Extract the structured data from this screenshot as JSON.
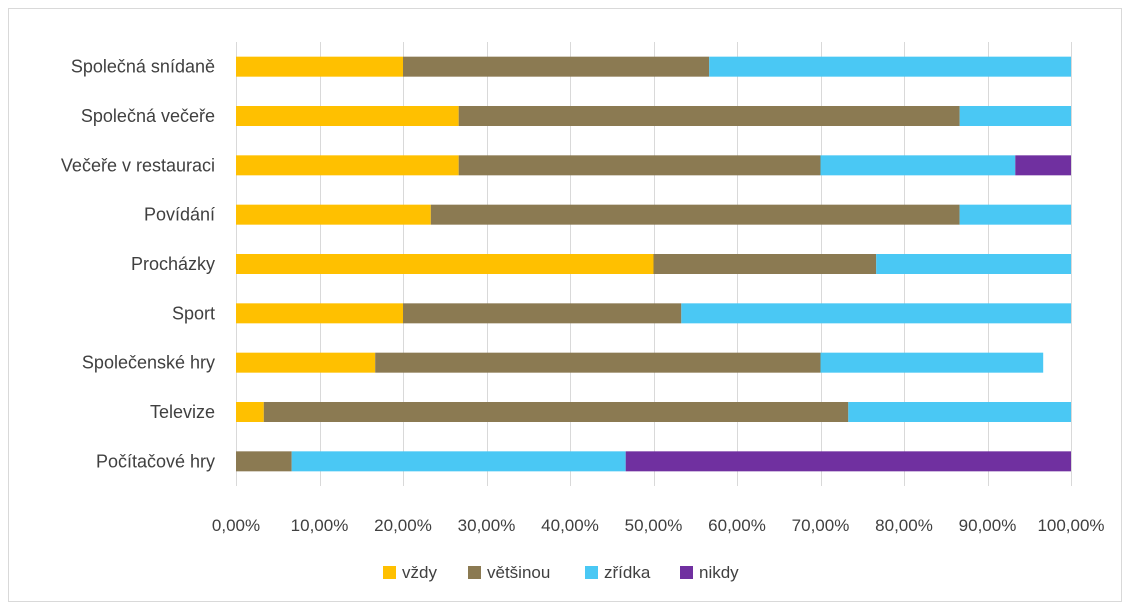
{
  "chart_data": {
    "type": "bar",
    "orientation": "horizontal",
    "stacked": true,
    "categories": [
      "Společná snídaně",
      "Společná večeře",
      "Večeře v restauraci",
      "Povídání",
      "Procházky",
      "Sport",
      "Společenské hry",
      "Televize",
      "Počítačové hry"
    ],
    "series": [
      {
        "name": "vždy",
        "color": "#ffc000",
        "values": [
          20.0,
          26.67,
          26.67,
          23.33,
          50.0,
          20.0,
          16.67,
          3.33,
          0.0
        ]
      },
      {
        "name": "většinou",
        "color": "#8b7a52",
        "values": [
          36.67,
          60.0,
          43.33,
          63.33,
          26.67,
          33.33,
          53.33,
          70.0,
          6.67
        ]
      },
      {
        "name": "zřídka",
        "color": "#4ac8f4",
        "values": [
          43.33,
          13.33,
          23.33,
          13.34,
          23.33,
          46.67,
          26.67,
          26.67,
          40.0
        ]
      },
      {
        "name": "nikdy",
        "color": "#7030a0",
        "values": [
          0.0,
          0.0,
          6.67,
          0.0,
          0.0,
          0.0,
          0.0,
          0.0,
          53.33
        ]
      }
    ],
    "xlim": [
      0,
      100
    ],
    "xticks": [
      "0,00%",
      "10,00%",
      "20,00%",
      "30,00%",
      "40,00%",
      "50,00%",
      "60,00%",
      "70,00%",
      "80,00%",
      "90,00%",
      "100,00%"
    ],
    "grid": "vertical",
    "legend_position": "bottom",
    "gridline_color": "#d9d9d9"
  }
}
